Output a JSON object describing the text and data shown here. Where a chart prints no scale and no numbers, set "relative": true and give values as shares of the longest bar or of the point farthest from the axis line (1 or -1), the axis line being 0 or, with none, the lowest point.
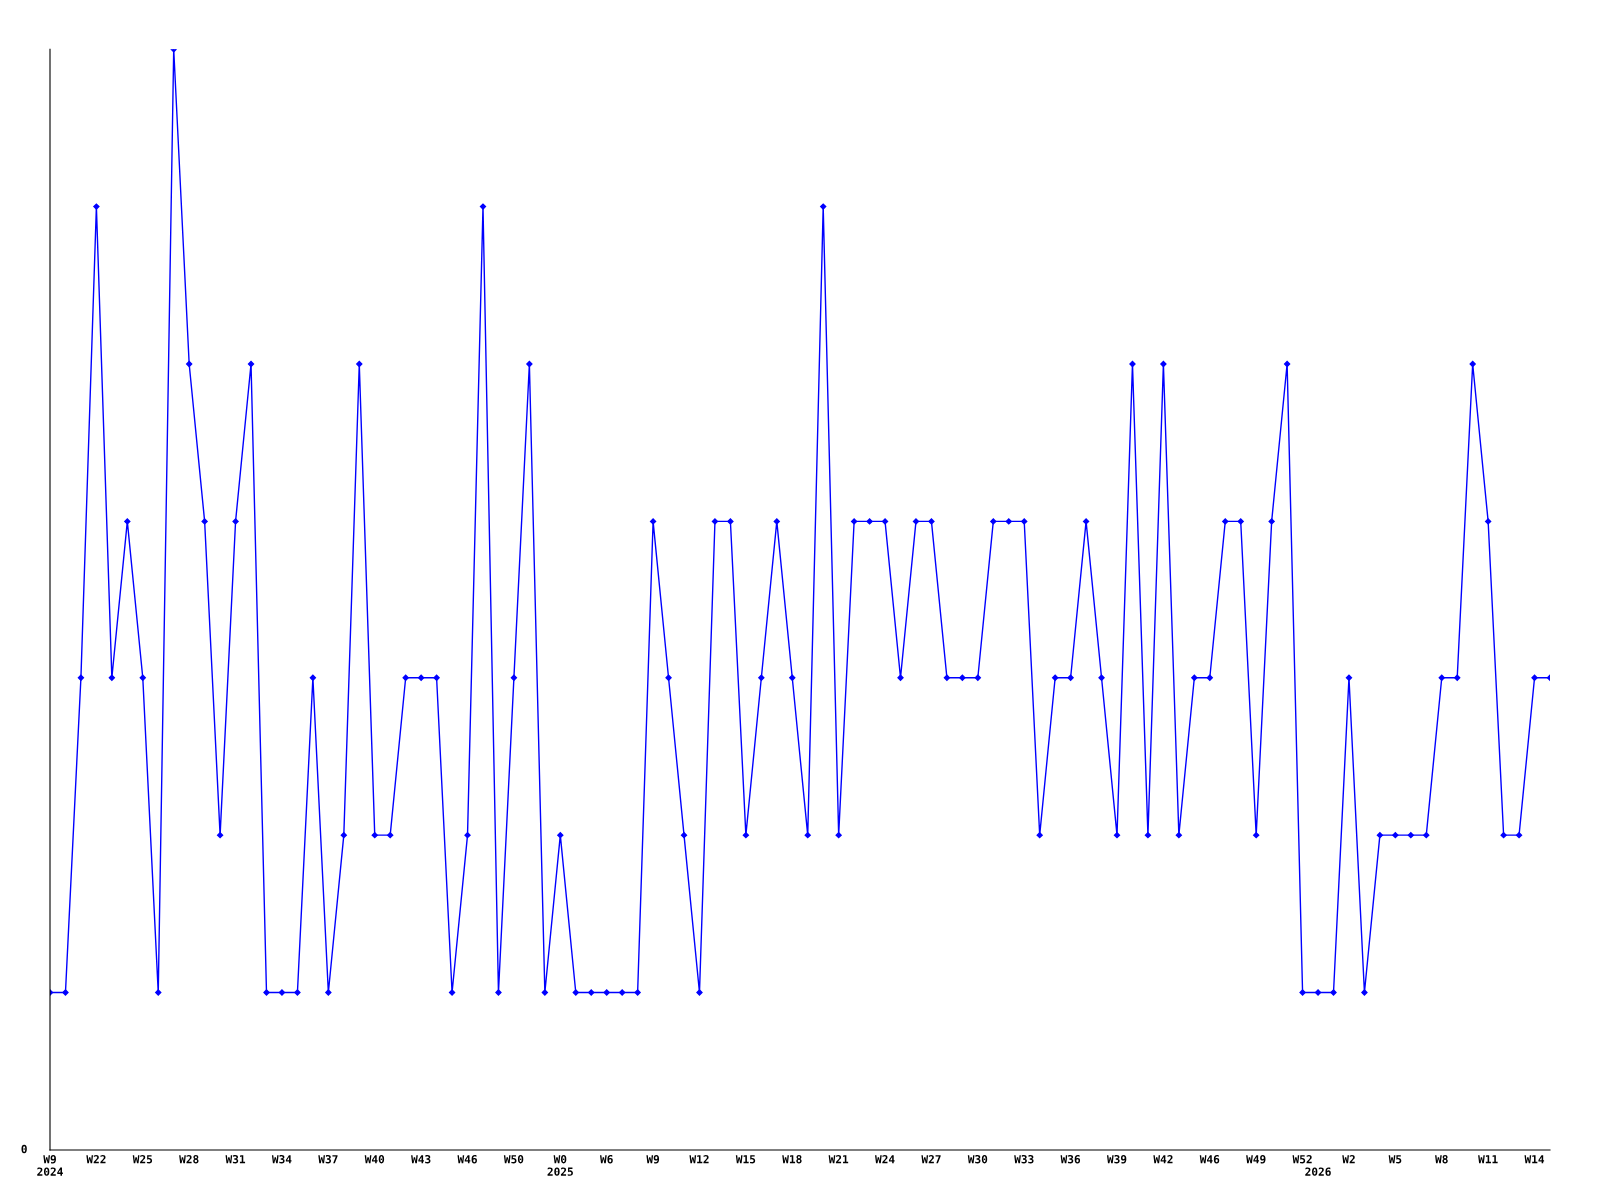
{
  "chart_data": {
    "type": "line",
    "relative": true,
    "marker": "diamond",
    "line_style": "solid",
    "grid": false,
    "legend": false,
    "annotations": [
      "0"
    ],
    "categories": [
      "W9\n2024",
      null,
      null,
      "W22",
      null,
      null,
      "W25",
      null,
      null,
      "W28",
      null,
      null,
      "W31",
      null,
      null,
      "W34",
      null,
      null,
      "W37",
      null,
      null,
      "W40",
      null,
      null,
      "W43",
      null,
      null,
      "W46",
      null,
      null,
      "W50",
      null,
      null,
      "W0\n2025",
      null,
      null,
      "W6",
      null,
      null,
      "W9",
      null,
      null,
      "W12",
      null,
      null,
      "W15",
      null,
      null,
      "W18",
      null,
      null,
      "W21",
      null,
      null,
      "W24",
      null,
      null,
      "W27",
      null,
      null,
      "W30",
      null,
      null,
      "W33",
      null,
      null,
      "W36",
      null,
      null,
      "W39",
      null,
      null,
      "W42",
      null,
      null,
      "W46",
      null,
      null,
      "W49",
      null,
      null,
      "W52",
      "\n2026",
      null,
      "W2",
      null,
      null,
      "W5",
      null,
      null,
      "W8",
      null,
      null,
      "W11",
      null,
      null,
      "W14",
      null
    ],
    "series": [
      {
        "color": "#0000ff",
        "values": [
          0.143,
          0.143,
          0.429,
          0.857,
          0.429,
          0.571,
          0.429,
          0.143,
          1,
          0.714,
          0.571,
          0.286,
          0.571,
          0.714,
          0.143,
          0.143,
          0.143,
          0.429,
          0.143,
          0.286,
          0.714,
          0.286,
          0.286,
          0.429,
          0.429,
          0.429,
          0.143,
          0.286,
          0.857,
          0.143,
          0.429,
          0.714,
          0.143,
          0.286,
          0.143,
          0.143,
          0.143,
          0.143,
          0.143,
          0.571,
          0.429,
          0.286,
          0.143,
          0.571,
          0.571,
          0.286,
          0.429,
          0.571,
          0.429,
          0.286,
          0.857,
          0.286,
          0.571,
          0.571,
          0.571,
          0.429,
          0.571,
          0.571,
          0.429,
          0.429,
          0.429,
          0.571,
          0.571,
          0.571,
          0.286,
          0.429,
          0.429,
          0.571,
          0.429,
          0.286,
          0.714,
          0.286,
          0.714,
          0.286,
          0.429,
          0.429,
          0.571,
          0.571,
          0.286,
          0.571,
          0.714,
          0.143,
          0.143,
          0.143,
          0.429,
          0.143,
          0.286,
          0.286,
          0.286,
          0.286,
          0.429,
          0.429,
          0.714,
          0.571,
          0.286,
          0.286,
          0.429,
          0.429
        ]
      }
    ]
  }
}
